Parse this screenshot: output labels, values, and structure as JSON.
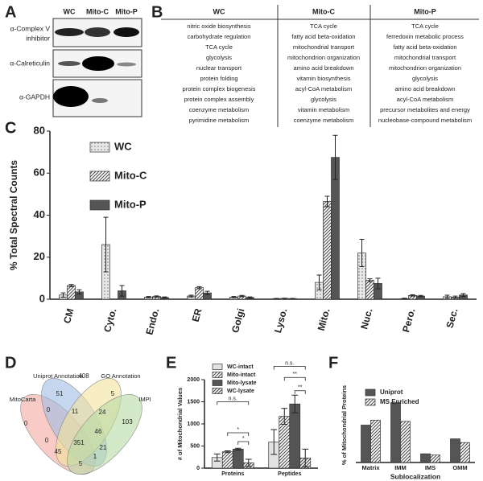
{
  "panels": {
    "letters": [
      "A",
      "B",
      "C",
      "D",
      "E",
      "F"
    ],
    "blot": {
      "lanes": [
        "WC",
        "Mito-C",
        "Mito-P"
      ],
      "antibodies": [
        {
          "lines": [
            "α-Complex V",
            "inhibitor"
          ]
        },
        {
          "lines": [
            "α-Calreticulin"
          ]
        },
        {
          "lines": [
            "α-GAPDH"
          ]
        }
      ]
    },
    "table": {
      "columns": [
        {
          "header": "WC",
          "items": [
            {
              "label": "nitric oxide biosynthesis",
              "color": "#777777"
            },
            {
              "label": "carbohydrate regulation",
              "color": "#777777"
            },
            {
              "label": "TCA cycle",
              "color": "#a8281e"
            },
            {
              "label": "glycolysis",
              "color": "#777777"
            },
            {
              "label": "nuclear transport",
              "color": "#777777"
            },
            {
              "label": "protein folding",
              "color": "#777777"
            },
            {
              "label": "protein complex biogenesis",
              "color": "#777777"
            },
            {
              "label": "protein complex assembly",
              "color": "#777777"
            },
            {
              "label": "coenzyme metabolism",
              "color": "#a8281e"
            },
            {
              "label": "pyrimidine metabolism",
              "color": "#777777"
            }
          ]
        },
        {
          "header": "Mito-C",
          "items": [
            {
              "label": "TCA cycle",
              "color": "#a8281e"
            },
            {
              "label": "fatty acid beta-oxidation",
              "color": "#a8281e"
            },
            {
              "label": "mitochondrial transport",
              "color": "#a8281e"
            },
            {
              "label": "mitochondrion organization",
              "color": "#a8281e"
            },
            {
              "label": "amino acid breakdown",
              "color": "#a8281e"
            },
            {
              "label": "vitamin biosynthesis",
              "color": "#a8281e"
            },
            {
              "label": "acyl-CoA metabolism",
              "color": "#a8281e"
            },
            {
              "label": "glycolysis",
              "color": "#777777"
            },
            {
              "label": "vitamin metabolism",
              "color": "#a8281e"
            },
            {
              "label": "coenzyme metabolism",
              "color": "#a8281e"
            }
          ]
        },
        {
          "header": "Mito-P",
          "items": [
            {
              "label": "TCA cycle",
              "color": "#a8281e"
            },
            {
              "label": "ferredoxin metabolic process",
              "color": "#a8281e"
            },
            {
              "label": "fatty acid beta-oxidation",
              "color": "#a8281e"
            },
            {
              "label": "mitochondrial transport",
              "color": "#a8281e"
            },
            {
              "label": "mitochondrion organization",
              "color": "#a8281e"
            },
            {
              "label": "glycolysis",
              "color": "#777777"
            },
            {
              "label": "amino acid breakdown",
              "color": "#a8281e"
            },
            {
              "label": "acyl-CoA metabolism",
              "color": "#a8281e"
            },
            {
              "label": "precursor metabolites and energy",
              "color": "#a8281e"
            },
            {
              "label": "nucleobase-compound metabolism",
              "color": "#777777"
            }
          ]
        }
      ]
    },
    "venn": {
      "sets": [
        "MitoCarta",
        "Uniprot Annotation",
        "GO Annotation",
        "IMPI"
      ],
      "colors": [
        "#f3a9a2",
        "#9fbde3",
        "#f1e39b",
        "#b7dba4"
      ],
      "regions": [
        "408",
        "51",
        "5",
        "0",
        "0",
        "11",
        "24",
        "103",
        "0",
        "46",
        "351",
        "21",
        "45",
        "5",
        "1"
      ]
    }
  },
  "chart_data": [
    {
      "type": "bar",
      "ylabel": "% Total Spectral Counts",
      "ylim": [
        0,
        80
      ],
      "yticks": [
        0,
        20,
        40,
        60,
        80
      ],
      "categories": [
        "CM",
        "Cyto.",
        "Endo.",
        "ER",
        "Golgi",
        "Lyso.",
        "Mito.",
        "Nuc.",
        "Pero.",
        "Sec."
      ],
      "series": [
        {
          "name": "WC",
          "color": "#e8e8e8",
          "pattern": "dots",
          "values": [
            2,
            26,
            1,
            1.5,
            1,
            0.3,
            8,
            22,
            0.3,
            1.2
          ],
          "errors": [
            1,
            13,
            0.3,
            0.4,
            0.3,
            0.1,
            3.5,
            6.5,
            0.2,
            0.7
          ]
        },
        {
          "name": "Mito-C",
          "color": "#ffffff",
          "pattern": "hatch",
          "values": [
            6.5,
            0,
            1.3,
            5.5,
            1.5,
            0.4,
            46.5,
            9,
            1.8,
            1
          ],
          "errors": [
            0.5,
            0,
            0.3,
            0.5,
            0.3,
            0.1,
            2.5,
            0.7,
            0.3,
            0.5
          ]
        },
        {
          "name": "Mito-P",
          "color": "#555555",
          "pattern": "solid",
          "values": [
            3.5,
            4,
            0.8,
            3,
            0.8,
            0.3,
            67.5,
            7.5,
            1.5,
            2
          ],
          "errors": [
            1,
            2.5,
            0.3,
            0.8,
            0.3,
            0.1,
            10.5,
            2.5,
            0.3,
            0.7
          ]
        }
      ]
    },
    {
      "type": "bar",
      "ylabel": "# of Mitochondrial Values",
      "ylim": [
        0,
        2000
      ],
      "yticks": [
        0,
        500,
        1000,
        1500,
        2000
      ],
      "categories": [
        "Proteins",
        "Peptides"
      ],
      "series": [
        {
          "name": "WC-intact",
          "color": "#e2e2e2",
          "pattern": "solid",
          "values": [
            240,
            590
          ],
          "errors": [
            80,
            280
          ]
        },
        {
          "name": "Mito-intact",
          "color": "#ffffff",
          "pattern": "hatch",
          "values": [
            370,
            1170
          ],
          "errors": [
            20,
            180
          ]
        },
        {
          "name": "Mito-lysate",
          "color": "#555555",
          "pattern": "solid",
          "values": [
            430,
            1450
          ],
          "errors": [
            20,
            200
          ]
        },
        {
          "name": "WC-lysate",
          "color": "#f0f0f0",
          "pattern": "hatch",
          "values": [
            120,
            230
          ],
          "errors": [
            80,
            200
          ]
        }
      ],
      "annotations": [
        "n.s.",
        "*",
        "*",
        "n.s.",
        "**",
        "**"
      ]
    },
    {
      "type": "bar",
      "ylabel": "% of Mitochondrial Proteins",
      "xlabel": "Sublocalization",
      "ylim": [
        0,
        30
      ],
      "categories": [
        "Matrix",
        "IMM",
        "IMS",
        "OMM"
      ],
      "series": [
        {
          "name": "Uniprot",
          "color": "#555555",
          "pattern": "solid",
          "values": [
            15,
            24,
            3.5,
            9.5
          ]
        },
        {
          "name": "MS Enriched",
          "color": "#ffffff",
          "pattern": "hatch",
          "values": [
            17,
            16.5,
            3,
            8
          ]
        }
      ]
    }
  ]
}
